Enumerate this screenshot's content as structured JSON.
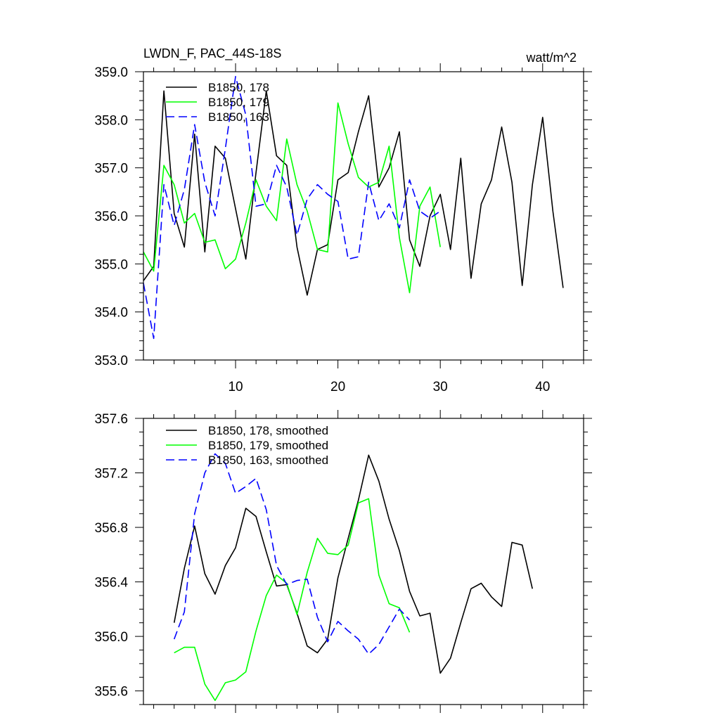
{
  "units": "watt/m^2",
  "chart_data": [
    {
      "type": "line",
      "title": "LWDN_F, PAC_44S-18S",
      "xlabel": "",
      "ylabel": "",
      "xlim": [
        1,
        44
      ],
      "ylim": [
        353.0,
        359.0
      ],
      "xticks": [
        10,
        20,
        30,
        40
      ],
      "xtick_labels": [
        "10",
        "20",
        "30",
        "40"
      ],
      "yticks": [
        353.0,
        354.0,
        355.0,
        356.0,
        357.0,
        358.0,
        359.0
      ],
      "ytick_labels": [
        "353.0",
        "354.0",
        "355.0",
        "356.0",
        "357.0",
        "358.0",
        "359.0"
      ],
      "legend_position": "top-left",
      "series": [
        {
          "name": "B1850, 178",
          "color": "#000000",
          "dash": "solid",
          "x": [
            1,
            2,
            3,
            4,
            5,
            6,
            7,
            8,
            9,
            10,
            11,
            12,
            13,
            14,
            15,
            16,
            17,
            18,
            19,
            20,
            21,
            22,
            23,
            24,
            25,
            26,
            27,
            28,
            29,
            30,
            31,
            32,
            33,
            34,
            35,
            36,
            37,
            38,
            39,
            40,
            41,
            42
          ],
          "values": [
            354.65,
            354.95,
            358.6,
            356.05,
            355.35,
            357.7,
            355.25,
            357.45,
            357.2,
            356.15,
            355.1,
            356.9,
            358.6,
            357.25,
            357.05,
            355.35,
            354.35,
            355.3,
            355.4,
            356.75,
            356.9,
            357.75,
            358.5,
            356.6,
            357.0,
            357.75,
            355.5,
            354.95,
            356.0,
            356.45,
            355.3,
            357.2,
            354.7,
            356.25,
            356.75,
            357.85,
            356.7,
            354.55,
            356.65,
            358.05,
            356.1,
            354.5
          ]
        },
        {
          "name": "B1850, 179",
          "color": "#00ff00",
          "dash": "solid",
          "x": [
            1,
            2,
            3,
            4,
            5,
            6,
            7,
            8,
            9,
            10,
            11,
            12,
            13,
            14,
            15,
            16,
            17,
            18,
            19,
            20,
            21,
            22,
            23,
            24,
            25,
            26,
            27,
            28,
            29,
            30
          ],
          "values": [
            355.25,
            354.85,
            357.05,
            356.65,
            355.85,
            356.05,
            355.45,
            355.5,
            354.9,
            355.1,
            355.85,
            356.75,
            356.2,
            355.9,
            357.6,
            356.65,
            356.1,
            355.3,
            355.25,
            358.35,
            357.5,
            356.8,
            356.6,
            356.7,
            357.45,
            355.55,
            354.4,
            356.2,
            356.6,
            355.35
          ]
        },
        {
          "name": "B1850, 163",
          "color": "#0000ff",
          "dash": "dashed",
          "x": [
            1,
            2,
            3,
            4,
            5,
            6,
            7,
            8,
            9,
            10,
            11,
            12,
            13,
            14,
            15,
            16,
            17,
            18,
            19,
            20,
            21,
            22,
            23,
            24,
            25,
            26,
            27,
            28,
            29,
            30
          ],
          "values": [
            354.6,
            353.45,
            356.65,
            355.8,
            356.55,
            357.9,
            356.7,
            356.0,
            357.4,
            358.9,
            358.1,
            356.2,
            356.25,
            357.05,
            356.6,
            355.6,
            356.35,
            356.65,
            356.45,
            356.3,
            355.1,
            355.15,
            356.7,
            355.9,
            356.25,
            355.75,
            356.75,
            356.1,
            355.95,
            356.1
          ]
        }
      ]
    },
    {
      "type": "line",
      "title": "",
      "xlabel": "",
      "ylabel": "",
      "xlim": [
        1,
        44
      ],
      "ylim": [
        355.5,
        357.6
      ],
      "xticks": [
        10,
        20,
        30,
        40
      ],
      "yticks": [
        355.6,
        356.0,
        356.4,
        356.8,
        357.2,
        357.6
      ],
      "ytick_labels": [
        "355.6",
        "356.0",
        "356.4",
        "356.8",
        "357.2",
        "357.6"
      ],
      "legend_position": "top-left",
      "series": [
        {
          "name": "B1850, 178, smoothed",
          "color": "#000000",
          "dash": "solid",
          "x": [
            4,
            5,
            6,
            7,
            8,
            9,
            10,
            11,
            12,
            13,
            14,
            15,
            16,
            17,
            18,
            19,
            20,
            21,
            22,
            23,
            24,
            25,
            26,
            27,
            28,
            29,
            30,
            31,
            32,
            33,
            34,
            35,
            36,
            37,
            38,
            39
          ],
          "values": [
            356.1,
            356.5,
            356.81,
            356.46,
            356.31,
            356.52,
            356.65,
            356.94,
            356.88,
            356.62,
            356.37,
            356.38,
            356.17,
            355.93,
            355.88,
            355.98,
            356.43,
            356.72,
            357.0,
            357.33,
            357.14,
            356.86,
            356.63,
            356.33,
            356.15,
            356.17,
            355.73,
            355.84,
            356.1,
            356.35,
            356.39,
            356.29,
            356.22,
            356.69,
            356.67,
            356.35
          ]
        },
        {
          "name": "B1850, 179, smoothed",
          "color": "#00ff00",
          "dash": "solid",
          "x": [
            4,
            5,
            6,
            7,
            8,
            9,
            10,
            11,
            12,
            13,
            14,
            15,
            16,
            17,
            18,
            19,
            20,
            21,
            22,
            23,
            24,
            25,
            26,
            27
          ],
          "values": [
            355.88,
            355.92,
            355.92,
            355.65,
            355.53,
            355.66,
            355.68,
            355.74,
            356.04,
            356.3,
            356.45,
            356.39,
            356.16,
            356.47,
            356.72,
            356.61,
            356.6,
            356.67,
            356.98,
            357.01,
            356.45,
            356.24,
            356.21,
            356.03
          ]
        },
        {
          "name": "B1850, 163, smoothed",
          "color": "#0000ff",
          "dash": "dashed",
          "x": [
            4,
            5,
            6,
            7,
            8,
            9,
            10,
            11,
            12,
            13,
            14,
            15,
            16,
            17,
            18,
            19,
            20,
            21,
            22,
            23,
            24,
            25,
            26,
            27
          ],
          "values": [
            355.98,
            356.18,
            356.9,
            357.2,
            357.34,
            357.27,
            357.05,
            357.1,
            357.16,
            356.93,
            356.52,
            356.38,
            356.41,
            356.42,
            356.14,
            355.96,
            356.11,
            356.04,
            355.98,
            355.87,
            355.94,
            356.07,
            356.2,
            356.12
          ]
        }
      ]
    }
  ]
}
